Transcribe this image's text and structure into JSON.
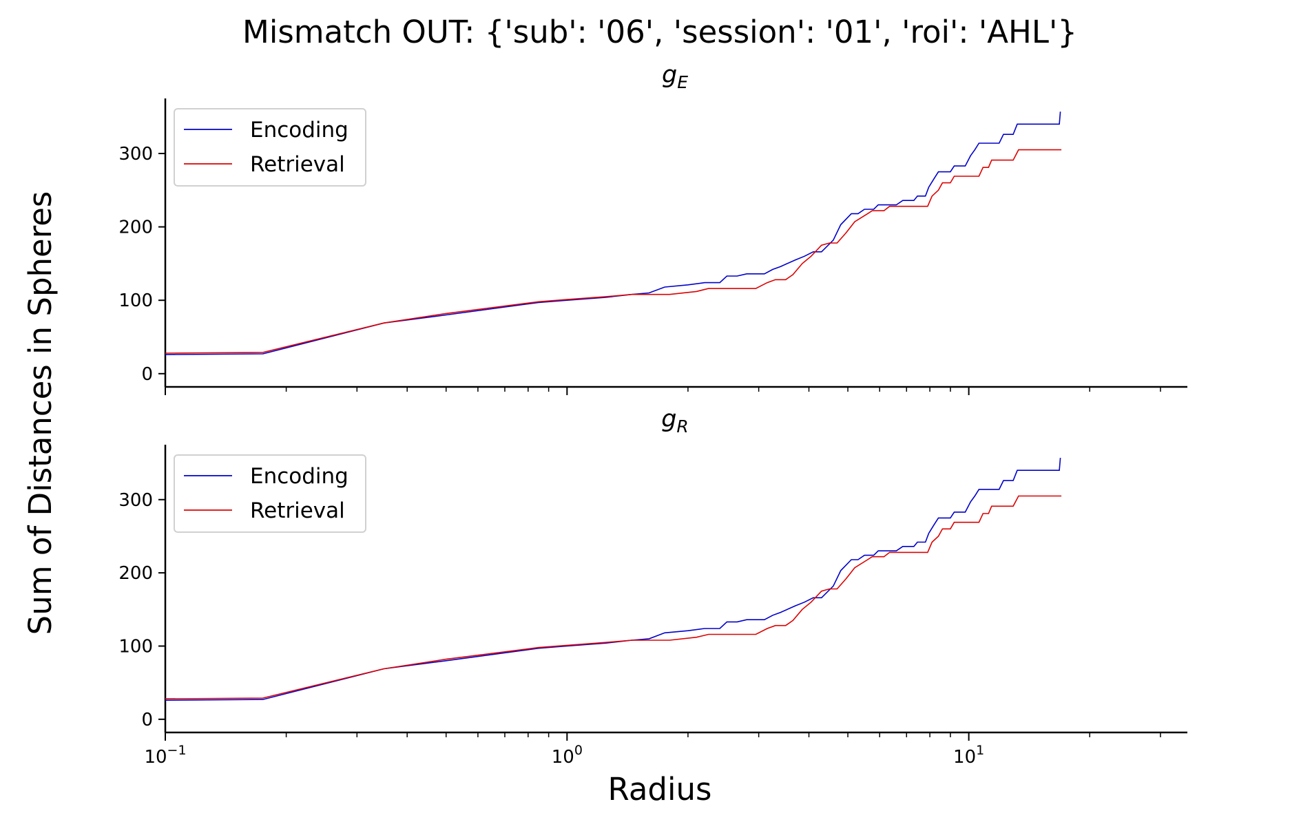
{
  "figure": {
    "suptitle": "Mismatch OUT: {'sub': '06', 'session': '01', 'roi': 'AHL'}",
    "xlabel": "Radius",
    "ylabel": "Sum of Distances in Spheres"
  },
  "colors": {
    "Encoding": "#0000cc",
    "Retrieval": "#dd0000"
  },
  "chart_data": [
    {
      "type": "line",
      "title": "g_E",
      "title_main": "g",
      "title_sub": "E",
      "xscale": "log",
      "xlim": [
        0.1,
        35
      ],
      "ylim": [
        -18,
        375
      ],
      "yticks": [
        0,
        100,
        200,
        300
      ],
      "xticks": [
        {
          "value": 0.1,
          "base": "10",
          "exp": "−1"
        },
        {
          "value": 1,
          "base": "10",
          "exp": "0"
        },
        {
          "value": 10,
          "base": "10",
          "exp": "1"
        }
      ],
      "legend": {
        "position": "upper left",
        "entries": [
          "Encoding",
          "Retrieval"
        ]
      },
      "series": [
        {
          "name": "Encoding",
          "points": [
            [
              0.1,
              26
            ],
            [
              0.175,
              27
            ],
            [
              0.35,
              69
            ],
            [
              0.5,
              80
            ],
            [
              0.85,
              97
            ],
            [
              1.0,
              100
            ],
            [
              1.25,
              104
            ],
            [
              1.45,
              108
            ],
            [
              1.6,
              110
            ],
            [
              1.75,
              118
            ],
            [
              2.0,
              121
            ],
            [
              2.2,
              124
            ],
            [
              2.4,
              124
            ],
            [
              2.5,
              133
            ],
            [
              2.65,
              133
            ],
            [
              2.8,
              136
            ],
            [
              3.1,
              136
            ],
            [
              3.25,
              142
            ],
            [
              3.4,
              146
            ],
            [
              3.7,
              155
            ],
            [
              3.9,
              160
            ],
            [
              4.1,
              166
            ],
            [
              4.3,
              166
            ],
            [
              4.6,
              182
            ],
            [
              4.8,
              203
            ],
            [
              5.1,
              218
            ],
            [
              5.3,
              218
            ],
            [
              5.5,
              224
            ],
            [
              5.8,
              224
            ],
            [
              5.95,
              230
            ],
            [
              6.6,
              230
            ],
            [
              6.85,
              236
            ],
            [
              7.3,
              236
            ],
            [
              7.45,
              242
            ],
            [
              7.8,
              242
            ],
            [
              7.95,
              254
            ],
            [
              8.2,
              266
            ],
            [
              8.4,
              275
            ],
            [
              9.0,
              275
            ],
            [
              9.2,
              283
            ],
            [
              9.8,
              283
            ],
            [
              10.1,
              297
            ],
            [
              10.35,
              305
            ],
            [
              10.6,
              314
            ],
            [
              11.9,
              314
            ],
            [
              12.2,
              326
            ],
            [
              12.9,
              326
            ],
            [
              13.2,
              340
            ],
            [
              16.8,
              340
            ],
            [
              16.9,
              357
            ]
          ]
        },
        {
          "name": "Retrieval",
          "points": [
            [
              0.1,
              28
            ],
            [
              0.175,
              29
            ],
            [
              0.35,
              69
            ],
            [
              0.5,
              82
            ],
            [
              0.85,
              98
            ],
            [
              1.0,
              101
            ],
            [
              1.25,
              105
            ],
            [
              1.45,
              108
            ],
            [
              1.8,
              108
            ],
            [
              2.1,
              112
            ],
            [
              2.25,
              116
            ],
            [
              2.95,
              116
            ],
            [
              3.15,
              124
            ],
            [
              3.3,
              128
            ],
            [
              3.5,
              128
            ],
            [
              3.65,
              135
            ],
            [
              3.85,
              150
            ],
            [
              4.05,
              160
            ],
            [
              4.3,
              175
            ],
            [
              4.5,
              178
            ],
            [
              4.7,
              178
            ],
            [
              4.95,
              192
            ],
            [
              5.2,
              207
            ],
            [
              5.6,
              218
            ],
            [
              5.75,
              222
            ],
            [
              6.15,
              222
            ],
            [
              6.35,
              228
            ],
            [
              7.9,
              228
            ],
            [
              8.1,
              242
            ],
            [
              8.4,
              250
            ],
            [
              8.6,
              260
            ],
            [
              9.0,
              260
            ],
            [
              9.2,
              269
            ],
            [
              10.6,
              269
            ],
            [
              10.85,
              281
            ],
            [
              11.2,
              281
            ],
            [
              11.4,
              291
            ],
            [
              12.9,
              291
            ],
            [
              13.3,
              305
            ],
            [
              17.0,
              305
            ]
          ]
        }
      ]
    },
    {
      "type": "line",
      "title": "g_R",
      "title_main": "g",
      "title_sub": "R",
      "xscale": "log",
      "xlim": [
        0.1,
        35
      ],
      "ylim": [
        -18,
        375
      ],
      "yticks": [
        0,
        100,
        200,
        300
      ],
      "xticks": [
        {
          "value": 0.1,
          "base": "10",
          "exp": "−1"
        },
        {
          "value": 1,
          "base": "10",
          "exp": "0"
        },
        {
          "value": 10,
          "base": "10",
          "exp": "1"
        }
      ],
      "legend": {
        "position": "upper left",
        "entries": [
          "Encoding",
          "Retrieval"
        ]
      },
      "series": [
        {
          "name": "Encoding",
          "points": [
            [
              0.1,
              26
            ],
            [
              0.175,
              27
            ],
            [
              0.35,
              69
            ],
            [
              0.5,
              80
            ],
            [
              0.85,
              97
            ],
            [
              1.0,
              100
            ],
            [
              1.25,
              104
            ],
            [
              1.45,
              108
            ],
            [
              1.6,
              110
            ],
            [
              1.75,
              118
            ],
            [
              2.0,
              121
            ],
            [
              2.2,
              124
            ],
            [
              2.4,
              124
            ],
            [
              2.5,
              133
            ],
            [
              2.65,
              133
            ],
            [
              2.8,
              136
            ],
            [
              3.1,
              136
            ],
            [
              3.25,
              142
            ],
            [
              3.4,
              146
            ],
            [
              3.7,
              155
            ],
            [
              3.9,
              160
            ],
            [
              4.1,
              166
            ],
            [
              4.3,
              166
            ],
            [
              4.6,
              182
            ],
            [
              4.8,
              203
            ],
            [
              5.1,
              218
            ],
            [
              5.3,
              218
            ],
            [
              5.5,
              224
            ],
            [
              5.8,
              224
            ],
            [
              5.95,
              230
            ],
            [
              6.6,
              230
            ],
            [
              6.85,
              236
            ],
            [
              7.3,
              236
            ],
            [
              7.45,
              242
            ],
            [
              7.8,
              242
            ],
            [
              7.95,
              254
            ],
            [
              8.2,
              266
            ],
            [
              8.4,
              275
            ],
            [
              9.0,
              275
            ],
            [
              9.2,
              283
            ],
            [
              9.8,
              283
            ],
            [
              10.1,
              297
            ],
            [
              10.35,
              305
            ],
            [
              10.6,
              314
            ],
            [
              11.9,
              314
            ],
            [
              12.2,
              326
            ],
            [
              12.9,
              326
            ],
            [
              13.2,
              340
            ],
            [
              16.8,
              340
            ],
            [
              16.9,
              357
            ]
          ]
        },
        {
          "name": "Retrieval",
          "points": [
            [
              0.1,
              28
            ],
            [
              0.175,
              29
            ],
            [
              0.35,
              69
            ],
            [
              0.5,
              82
            ],
            [
              0.85,
              98
            ],
            [
              1.0,
              101
            ],
            [
              1.25,
              105
            ],
            [
              1.45,
              108
            ],
            [
              1.8,
              108
            ],
            [
              2.1,
              112
            ],
            [
              2.25,
              116
            ],
            [
              2.95,
              116
            ],
            [
              3.15,
              124
            ],
            [
              3.3,
              128
            ],
            [
              3.5,
              128
            ],
            [
              3.65,
              135
            ],
            [
              3.85,
              150
            ],
            [
              4.05,
              160
            ],
            [
              4.3,
              175
            ],
            [
              4.5,
              178
            ],
            [
              4.7,
              178
            ],
            [
              4.95,
              192
            ],
            [
              5.2,
              207
            ],
            [
              5.6,
              218
            ],
            [
              5.75,
              222
            ],
            [
              6.15,
              222
            ],
            [
              6.35,
              228
            ],
            [
              7.9,
              228
            ],
            [
              8.1,
              242
            ],
            [
              8.4,
              250
            ],
            [
              8.6,
              260
            ],
            [
              9.0,
              260
            ],
            [
              9.2,
              269
            ],
            [
              10.6,
              269
            ],
            [
              10.85,
              281
            ],
            [
              11.2,
              281
            ],
            [
              11.4,
              291
            ],
            [
              12.9,
              291
            ],
            [
              13.3,
              305
            ],
            [
              17.0,
              305
            ]
          ]
        }
      ]
    }
  ]
}
